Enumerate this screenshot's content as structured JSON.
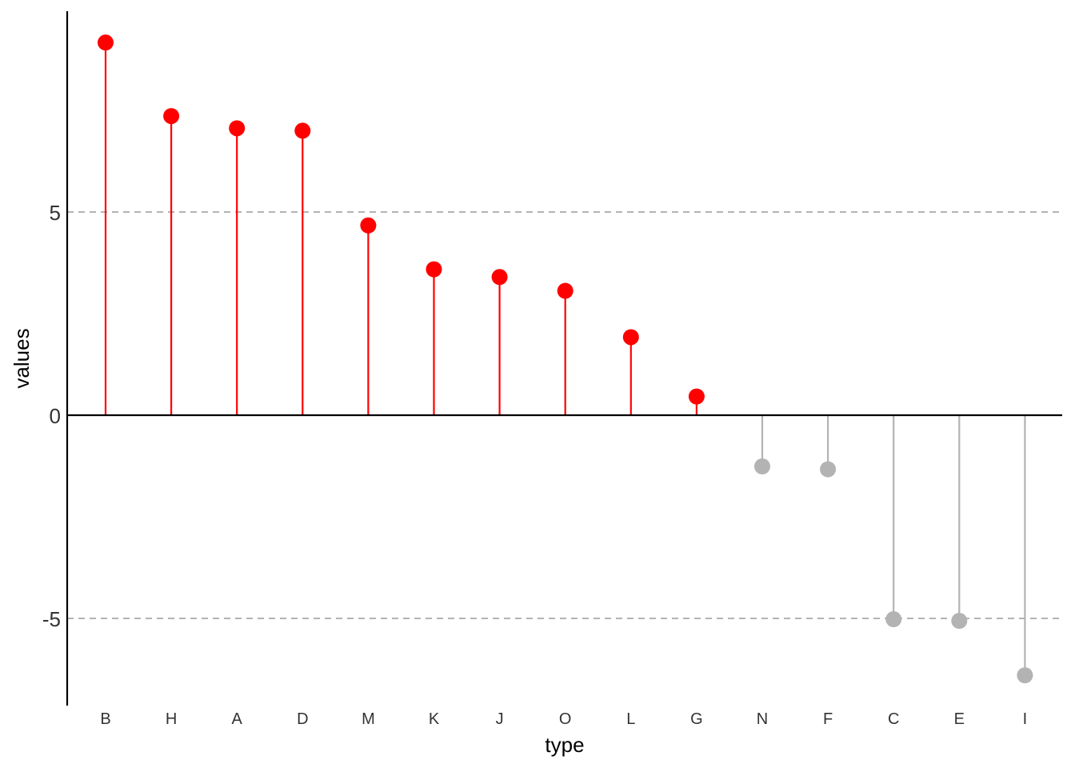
{
  "chart_data": {
    "type": "lollipop",
    "title": "",
    "xlabel": "type",
    "ylabel": "values",
    "ylim": [
      -7.2,
      9.9
    ],
    "yticks": [
      -5,
      0,
      5
    ],
    "ytick_labels": [
      "-5",
      "0",
      "5"
    ],
    "reference_lines": [
      -5,
      5
    ],
    "grid": false,
    "legend": "none",
    "colors": {
      "positive": "#ff0000",
      "negative": "#b3b3b3",
      "reference_line": "#b3b3b3",
      "zero_line": "#000000",
      "axis": "#000000"
    },
    "categories": [
      "B",
      "H",
      "A",
      "D",
      "M",
      "K",
      "J",
      "O",
      "L",
      "G",
      "N",
      "F",
      "C",
      "E",
      "I"
    ],
    "values": [
      9.17,
      7.36,
      7.06,
      7.0,
      4.67,
      3.59,
      3.4,
      3.06,
      1.92,
      0.46,
      -1.26,
      -1.33,
      -5.02,
      -5.06,
      -6.4
    ]
  }
}
